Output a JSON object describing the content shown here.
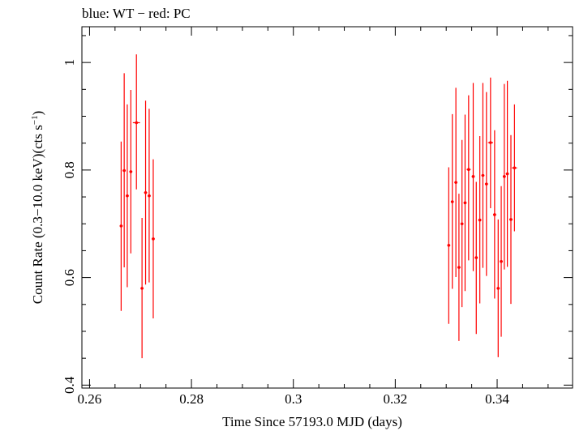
{
  "chart_data": {
    "type": "scatter",
    "title": "blue: WT − red: PC",
    "xlabel": "Time Since 57193.0 MJD (days)",
    "ylabel_main": "Count Rate (0.3−10.0 keV)(cts s",
    "ylabel_sup": "−1",
    "ylabel_close": ")",
    "xlim": [
      0.2585,
      0.3548
    ],
    "ylim": [
      0.3945,
      1.0665
    ],
    "x_ticks": [
      0.26,
      0.28,
      0.3,
      0.32,
      0.34
    ],
    "x_tick_labels": [
      "0.26",
      "0.28",
      "0.3",
      "0.32",
      "0.34"
    ],
    "y_ticks": [
      0.4,
      0.6,
      0.8,
      1.0
    ],
    "y_tick_labels": [
      "0.4",
      "0.6",
      "0.8",
      "1"
    ],
    "grid": false,
    "series": [
      {
        "name": "PC",
        "color": "#ff0000",
        "points": [
          {
            "x": 0.2662,
            "y": 0.696,
            "ylo": 0.538,
            "yhi": 0.853,
            "xerr": 0.0003
          },
          {
            "x": 0.2668,
            "y": 0.799,
            "ylo": 0.619,
            "yhi": 0.98,
            "xerr": 0.0003
          },
          {
            "x": 0.2674,
            "y": 0.752,
            "ylo": 0.582,
            "yhi": 0.922,
            "xerr": 0.0003
          },
          {
            "x": 0.2681,
            "y": 0.797,
            "ylo": 0.645,
            "yhi": 0.949,
            "xerr": 0.0003
          },
          {
            "x": 0.2692,
            "y": 0.888,
            "ylo": 0.764,
            "yhi": 1.015,
            "xerr": 0.0007
          },
          {
            "x": 0.2703,
            "y": 0.58,
            "ylo": 0.45,
            "yhi": 0.711,
            "xerr": 0.0003
          },
          {
            "x": 0.271,
            "y": 0.758,
            "ylo": 0.587,
            "yhi": 0.929,
            "xerr": 0.0003
          },
          {
            "x": 0.2717,
            "y": 0.752,
            "ylo": 0.591,
            "yhi": 0.914,
            "xerr": 0.0003
          },
          {
            "x": 0.2725,
            "y": 0.672,
            "ylo": 0.524,
            "yhi": 0.82,
            "xerr": 0.0003
          },
          {
            "x": 0.3305,
            "y": 0.66,
            "ylo": 0.514,
            "yhi": 0.805,
            "xerr": 0.0003
          },
          {
            "x": 0.3312,
            "y": 0.741,
            "ylo": 0.579,
            "yhi": 0.904,
            "xerr": 0.0003
          },
          {
            "x": 0.3319,
            "y": 0.777,
            "ylo": 0.601,
            "yhi": 0.953,
            "xerr": 0.0003
          },
          {
            "x": 0.3325,
            "y": 0.619,
            "ylo": 0.482,
            "yhi": 0.756,
            "xerr": 0.0003
          },
          {
            "x": 0.3331,
            "y": 0.7,
            "ylo": 0.545,
            "yhi": 0.856,
            "xerr": 0.0003
          },
          {
            "x": 0.3337,
            "y": 0.739,
            "ylo": 0.575,
            "yhi": 0.903,
            "xerr": 0.0003
          },
          {
            "x": 0.3344,
            "y": 0.801,
            "ylo": 0.632,
            "yhi": 0.939,
            "xerr": 0.0004
          },
          {
            "x": 0.3353,
            "y": 0.788,
            "ylo": 0.612,
            "yhi": 0.962,
            "xerr": 0.0003
          },
          {
            "x": 0.3359,
            "y": 0.637,
            "ylo": 0.495,
            "yhi": 0.778,
            "xerr": 0.0003
          },
          {
            "x": 0.3366,
            "y": 0.707,
            "ylo": 0.552,
            "yhi": 0.863,
            "xerr": 0.0003
          },
          {
            "x": 0.3372,
            "y": 0.79,
            "ylo": 0.618,
            "yhi": 0.962,
            "xerr": 0.0003
          },
          {
            "x": 0.3379,
            "y": 0.774,
            "ylo": 0.603,
            "yhi": 0.945,
            "xerr": 0.0003
          },
          {
            "x": 0.3387,
            "y": 0.851,
            "ylo": 0.729,
            "yhi": 0.972,
            "xerr": 0.0005
          },
          {
            "x": 0.3395,
            "y": 0.717,
            "ylo": 0.561,
            "yhi": 0.874,
            "xerr": 0.0003
          },
          {
            "x": 0.3402,
            "y": 0.58,
            "ylo": 0.452,
            "yhi": 0.708,
            "xerr": 0.0003
          },
          {
            "x": 0.3408,
            "y": 0.63,
            "ylo": 0.49,
            "yhi": 0.77,
            "xerr": 0.0003
          },
          {
            "x": 0.3414,
            "y": 0.788,
            "ylo": 0.615,
            "yhi": 0.96,
            "xerr": 0.0003
          },
          {
            "x": 0.342,
            "y": 0.793,
            "ylo": 0.62,
            "yhi": 0.966,
            "xerr": 0.0003
          },
          {
            "x": 0.3427,
            "y": 0.708,
            "ylo": 0.551,
            "yhi": 0.865,
            "xerr": 0.0003
          },
          {
            "x": 0.3434,
            "y": 0.804,
            "ylo": 0.686,
            "yhi": 0.922,
            "xerr": 0.0005
          }
        ]
      }
    ]
  }
}
